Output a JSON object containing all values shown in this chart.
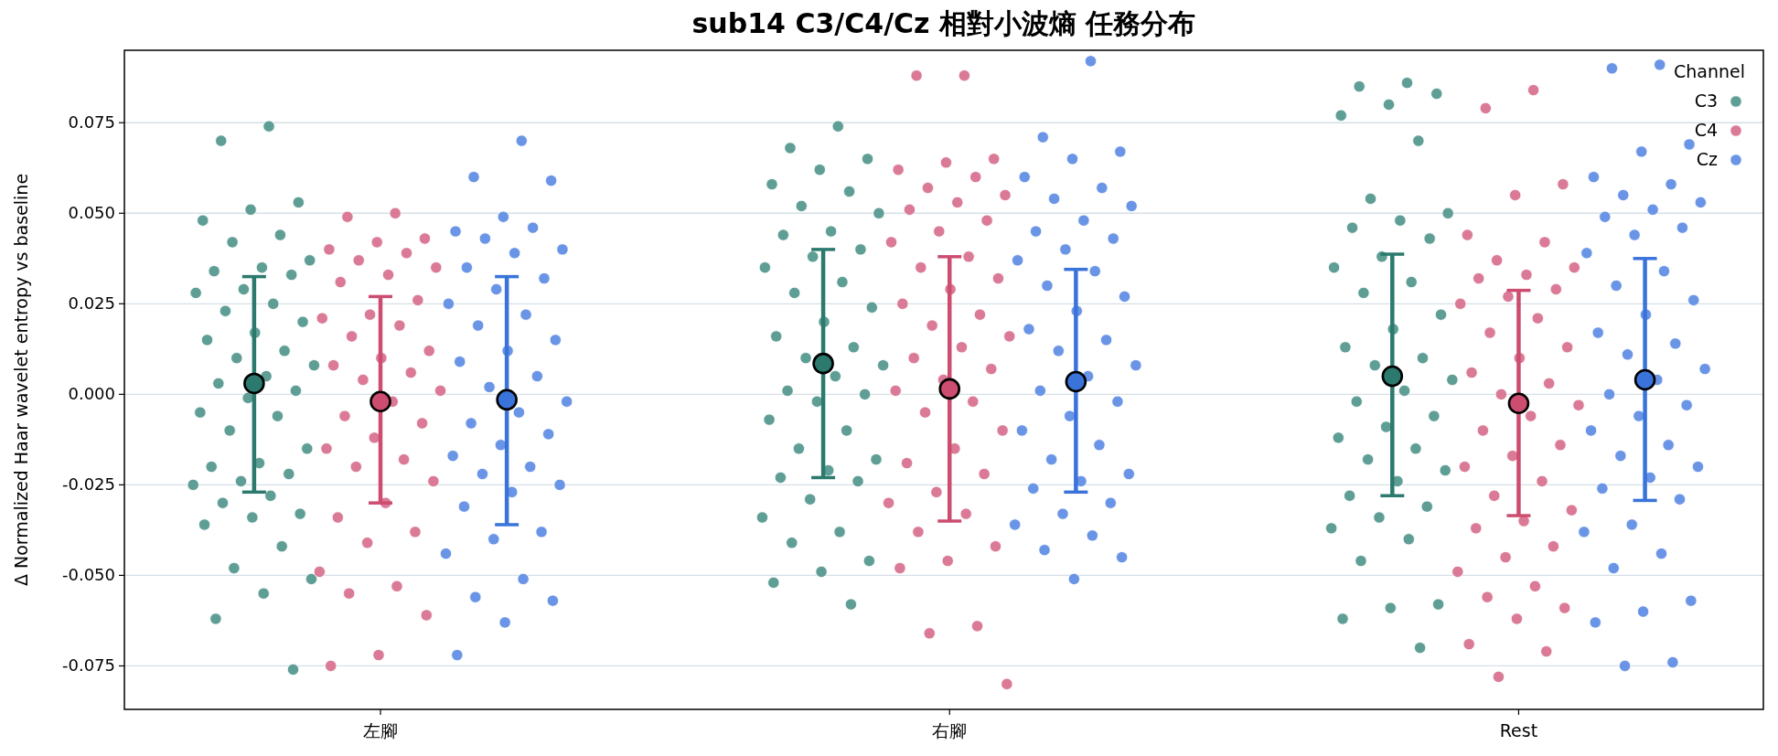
{
  "chart_data": {
    "type": "scatter",
    "title": "sub14 C3/C4/Cz 相對小波熵 任務分布",
    "ylabel": "Δ Normalized Haar wavelet entropy vs baseline",
    "categories": [
      "左腳",
      "右腳",
      "Rest"
    ],
    "ylim": [
      -0.087,
      0.095
    ],
    "yticks": [
      {
        "value": -0.075,
        "label": "-0.075"
      },
      {
        "value": -0.05,
        "label": "-0.050"
      },
      {
        "value": -0.025,
        "label": "-0.025"
      },
      {
        "value": 0,
        "label": "0.000"
      },
      {
        "value": 0.025,
        "label": "0.025"
      },
      {
        "value": 0.05,
        "label": "0.050"
      },
      {
        "value": 0.075,
        "label": "0.075"
      }
    ],
    "grid": "y",
    "legend": "top right",
    "legend_title": "Channel",
    "marker": "circle",
    "series": [
      {
        "name": "C3",
        "color": "#5f9e95",
        "x": [
          "左腳",
          "左腳",
          "左腳",
          "左腳",
          "左腳",
          "左腳",
          "左腳",
          "左腳",
          "左腳",
          "左腳",
          "左腳",
          "左腳",
          "左腳",
          "左腳",
          "左腳",
          "左腳",
          "左腳",
          "左腳",
          "左腳",
          "左腳",
          "左腳",
          "左腳",
          "左腳",
          "左腳",
          "左腳",
          "左腳",
          "左腳",
          "左腳",
          "左腳",
          "左腳",
          "左腳",
          "左腳",
          "左腳",
          "左腳",
          "左腳",
          "左腳",
          "左腳",
          "左腳",
          "左腳",
          "左腳",
          "左腳",
          "左腳",
          "左腳",
          "左腳",
          "左腳",
          "右腳",
          "右腳",
          "右腳",
          "右腳",
          "右腳",
          "右腳",
          "右腳",
          "右腳",
          "右腳",
          "右腳",
          "右腳",
          "右腳",
          "右腳",
          "右腳",
          "右腳",
          "右腳",
          "右腳",
          "右腳",
          "右腳",
          "右腳",
          "右腳",
          "右腳",
          "右腳",
          "右腳",
          "右腳",
          "右腳",
          "右腳",
          "右腳",
          "右腳",
          "右腳",
          "右腳",
          "右腳",
          "右腳",
          "右腳",
          "右腳",
          "右腳",
          "右腳",
          "右腳",
          "右腳",
          "右腳",
          "Rest",
          "Rest",
          "Rest",
          "Rest",
          "Rest",
          "Rest",
          "Rest",
          "Rest",
          "Rest",
          "Rest",
          "Rest",
          "Rest",
          "Rest",
          "Rest",
          "Rest",
          "Rest",
          "Rest",
          "Rest",
          "Rest",
          "Rest",
          "Rest",
          "Rest",
          "Rest",
          "Rest",
          "Rest",
          "Rest",
          "Rest",
          "Rest",
          "Rest",
          "Rest",
          "Rest",
          "Rest",
          "Rest",
          "Rest",
          "Rest",
          "Rest",
          "Rest",
          "Rest",
          "Rest",
          "Rest"
        ],
        "values": [
          0.074,
          0.07,
          0.053,
          0.051,
          0.048,
          0.044,
          0.042,
          0.037,
          0.035,
          0.034,
          0.033,
          0.029,
          0.028,
          0.025,
          0.023,
          0.02,
          0.017,
          0.015,
          0.012,
          0.01,
          0.008,
          0.005,
          0.003,
          0.001,
          -0.001,
          -0.005,
          -0.006,
          -0.01,
          -0.015,
          -0.019,
          -0.02,
          -0.022,
          -0.024,
          -0.025,
          -0.028,
          -0.03,
          -0.033,
          -0.034,
          -0.036,
          -0.042,
          -0.048,
          -0.051,
          -0.055,
          -0.062,
          -0.076,
          0.074,
          0.068,
          0.065,
          0.062,
          0.058,
          0.056,
          0.052,
          0.05,
          0.045,
          0.044,
          0.04,
          0.038,
          0.035,
          0.031,
          0.028,
          0.024,
          0.02,
          0.016,
          0.013,
          0.01,
          0.008,
          0.005,
          0.001,
          0.0,
          -0.002,
          -0.007,
          -0.01,
          -0.015,
          -0.018,
          -0.021,
          -0.023,
          -0.024,
          -0.029,
          -0.034,
          -0.038,
          -0.041,
          -0.046,
          -0.049,
          -0.052,
          -0.058,
          0.086,
          0.085,
          0.083,
          0.08,
          0.077,
          0.07,
          0.054,
          0.05,
          0.048,
          0.046,
          0.043,
          0.038,
          0.035,
          0.031,
          0.028,
          0.022,
          0.018,
          0.013,
          0.01,
          0.008,
          0.004,
          0.001,
          -0.002,
          -0.006,
          -0.009,
          -0.012,
          -0.015,
          -0.018,
          -0.021,
          -0.024,
          -0.028,
          -0.031,
          -0.034,
          -0.037,
          -0.04,
          -0.046,
          -0.058,
          -0.059,
          -0.062,
          -0.07
        ]
      },
      {
        "name": "C4",
        "color": "#da7a96",
        "x": [
          "左腳",
          "左腳",
          "左腳",
          "左腳",
          "左腳",
          "左腳",
          "左腳",
          "左腳",
          "左腳",
          "左腳",
          "左腳",
          "左腳",
          "左腳",
          "左腳",
          "左腳",
          "左腳",
          "左腳",
          "左腳",
          "左腳",
          "左腳",
          "左腳",
          "左腳",
          "左腳",
          "左腳",
          "左腳",
          "左腳",
          "左腳",
          "左腳",
          "左腳",
          "左腳",
          "左腳",
          "左腳",
          "左腳",
          "左腳",
          "左腳",
          "左腳",
          "左腳",
          "左腳",
          "左腳",
          "右腳",
          "右腳",
          "右腳",
          "右腳",
          "右腳",
          "右腳",
          "右腳",
          "右腳",
          "右腳",
          "右腳",
          "右腳",
          "右腳",
          "右腳",
          "右腳",
          "右腳",
          "右腳",
          "右腳",
          "右腳",
          "右腳",
          "右腳",
          "右腳",
          "右腳",
          "右腳",
          "右腳",
          "右腳",
          "右腳",
          "右腳",
          "右腳",
          "右腳",
          "右腳",
          "右腳",
          "右腳",
          "右腳",
          "右腳",
          "右腳",
          "右腳",
          "右腳",
          "右腳",
          "右腳",
          "右腳",
          "右腳",
          "右腳",
          "Rest",
          "Rest",
          "Rest",
          "Rest",
          "Rest",
          "Rest",
          "Rest",
          "Rest",
          "Rest",
          "Rest",
          "Rest",
          "Rest",
          "Rest",
          "Rest",
          "Rest",
          "Rest",
          "Rest",
          "Rest",
          "Rest",
          "Rest",
          "Rest",
          "Rest",
          "Rest",
          "Rest",
          "Rest",
          "Rest",
          "Rest",
          "Rest",
          "Rest",
          "Rest",
          "Rest",
          "Rest",
          "Rest",
          "Rest",
          "Rest",
          "Rest",
          "Rest",
          "Rest",
          "Rest",
          "Rest",
          "Rest"
        ],
        "values": [
          0.05,
          0.049,
          0.043,
          0.042,
          0.04,
          0.039,
          0.037,
          0.035,
          0.033,
          0.031,
          0.026,
          0.022,
          0.021,
          0.019,
          0.016,
          0.012,
          0.01,
          0.008,
          0.006,
          0.004,
          0.001,
          -0.002,
          -0.006,
          -0.008,
          -0.012,
          -0.015,
          -0.018,
          -0.02,
          -0.024,
          -0.03,
          -0.034,
          -0.038,
          -0.041,
          -0.049,
          -0.053,
          -0.055,
          -0.061,
          -0.072,
          -0.075,
          0.088,
          0.088,
          0.065,
          0.064,
          0.062,
          0.06,
          0.057,
          0.055,
          0.053,
          0.051,
          0.048,
          0.045,
          0.042,
          0.038,
          0.035,
          0.032,
          0.029,
          0.025,
          0.022,
          0.019,
          0.016,
          0.013,
          0.01,
          0.007,
          0.004,
          0.001,
          -0.002,
          -0.005,
          -0.01,
          -0.015,
          -0.019,
          -0.022,
          -0.027,
          -0.03,
          -0.033,
          -0.038,
          -0.042,
          -0.046,
          -0.048,
          -0.064,
          -0.066,
          -0.08,
          0.084,
          0.079,
          0.058,
          0.055,
          0.044,
          0.042,
          0.037,
          0.035,
          0.033,
          0.032,
          0.029,
          0.027,
          0.025,
          0.021,
          0.017,
          0.013,
          0.01,
          0.006,
          0.003,
          0.0,
          -0.003,
          -0.006,
          -0.01,
          -0.014,
          -0.017,
          -0.02,
          -0.024,
          -0.028,
          -0.032,
          -0.035,
          -0.037,
          -0.042,
          -0.045,
          -0.049,
          -0.053,
          -0.056,
          -0.059,
          -0.062,
          -0.069,
          -0.071,
          -0.078
        ]
      },
      {
        "name": "Cz",
        "color": "#6a95e6",
        "x": [
          "左腳",
          "左腳",
          "左腳",
          "左腳",
          "左腳",
          "左腳",
          "左腳",
          "左腳",
          "左腳",
          "左腳",
          "左腳",
          "左腳",
          "左腳",
          "左腳",
          "左腳",
          "左腳",
          "左腳",
          "左腳",
          "左腳",
          "左腳",
          "左腳",
          "左腳",
          "左腳",
          "左腳",
          "左腳",
          "左腳",
          "左腳",
          "左腳",
          "左腳",
          "左腳",
          "左腳",
          "左腳",
          "左腳",
          "左腳",
          "左腳",
          "左腳",
          "左腳",
          "左腳",
          "左腳",
          "右腳",
          "右腳",
          "右腳",
          "右腳",
          "右腳",
          "右腳",
          "右腳",
          "右腳",
          "右腳",
          "右腳",
          "右腳",
          "右腳",
          "右腳",
          "右腳",
          "右腳",
          "右腳",
          "右腳",
          "右腳",
          "右腳",
          "右腳",
          "右腳",
          "右腳",
          "右腳",
          "右腳",
          "右腳",
          "右腳",
          "右腳",
          "右腳",
          "右腳",
          "右腳",
          "右腳",
          "右腳",
          "右腳",
          "右腳",
          "右腳",
          "右腳",
          "右腳",
          "右腳",
          "Rest",
          "Rest",
          "Rest",
          "Rest",
          "Rest",
          "Rest",
          "Rest",
          "Rest",
          "Rest",
          "Rest",
          "Rest",
          "Rest",
          "Rest",
          "Rest",
          "Rest",
          "Rest",
          "Rest",
          "Rest",
          "Rest",
          "Rest",
          "Rest",
          "Rest",
          "Rest",
          "Rest",
          "Rest",
          "Rest",
          "Rest",
          "Rest",
          "Rest",
          "Rest",
          "Rest",
          "Rest",
          "Rest",
          "Rest",
          "Rest",
          "Rest",
          "Rest",
          "Rest",
          "Rest",
          "Rest",
          "Rest"
        ],
        "values": [
          0.07,
          0.06,
          0.059,
          0.049,
          0.045,
          0.046,
          0.043,
          0.04,
          0.039,
          0.035,
          0.032,
          0.029,
          0.025,
          0.022,
          0.019,
          0.015,
          0.012,
          0.009,
          0.005,
          0.002,
          -0.002,
          -0.005,
          -0.008,
          -0.011,
          -0.014,
          -0.017,
          -0.02,
          -0.022,
          -0.025,
          -0.027,
          -0.031,
          -0.038,
          -0.04,
          -0.044,
          -0.051,
          -0.056,
          -0.057,
          -0.063,
          -0.072,
          0.092,
          0.071,
          0.067,
          0.065,
          0.06,
          0.057,
          0.054,
          0.052,
          0.048,
          0.045,
          0.043,
          0.04,
          0.037,
          0.034,
          0.03,
          0.027,
          0.023,
          0.018,
          0.015,
          0.012,
          0.008,
          0.005,
          0.001,
          -0.002,
          -0.006,
          -0.01,
          -0.014,
          -0.018,
          -0.022,
          -0.024,
          -0.026,
          -0.03,
          -0.033,
          -0.036,
          -0.039,
          -0.043,
          -0.045,
          -0.051,
          0.091,
          0.09,
          0.069,
          0.067,
          0.06,
          0.058,
          0.055,
          0.053,
          0.051,
          0.049,
          0.046,
          0.044,
          0.039,
          0.034,
          0.03,
          0.026,
          0.022,
          0.017,
          0.014,
          0.011,
          0.007,
          0.004,
          0.0,
          -0.003,
          -0.006,
          -0.01,
          -0.014,
          -0.017,
          -0.02,
          -0.023,
          -0.026,
          -0.029,
          -0.036,
          -0.038,
          -0.044,
          -0.048,
          -0.057,
          -0.06,
          -0.063,
          -0.074,
          -0.075
        ]
      },
      {
        "color": "#2b7a6d",
        "x": [
          "左腳",
          "右腳",
          "Rest"
        ],
        "values": [
          0.003,
          0.0085,
          0.005
        ],
        "errors": [
          [
            -0.027,
            0.0325
          ],
          [
            -0.023,
            0.04
          ],
          [
            -0.028,
            0.0387
          ]
        ]
      },
      {
        "color": "#cc4d70",
        "x": [
          "左腳",
          "右腳",
          "Rest"
        ],
        "values": [
          -0.002,
          0.0015,
          -0.0025
        ],
        "errors": [
          [
            -0.03,
            0.027
          ],
          [
            -0.035,
            0.038
          ],
          [
            -0.0335,
            0.0287
          ]
        ]
      },
      {
        "color": "#3a73d9",
        "x": [
          "左腳",
          "右腳",
          "Rest"
        ],
        "values": [
          -0.0015,
          0.0035,
          0.004
        ],
        "errors": [
          [
            -0.036,
            0.0325
          ],
          [
            -0.027,
            0.0345
          ],
          [
            -0.0293,
            0.0375
          ]
        ]
      }
    ]
  }
}
